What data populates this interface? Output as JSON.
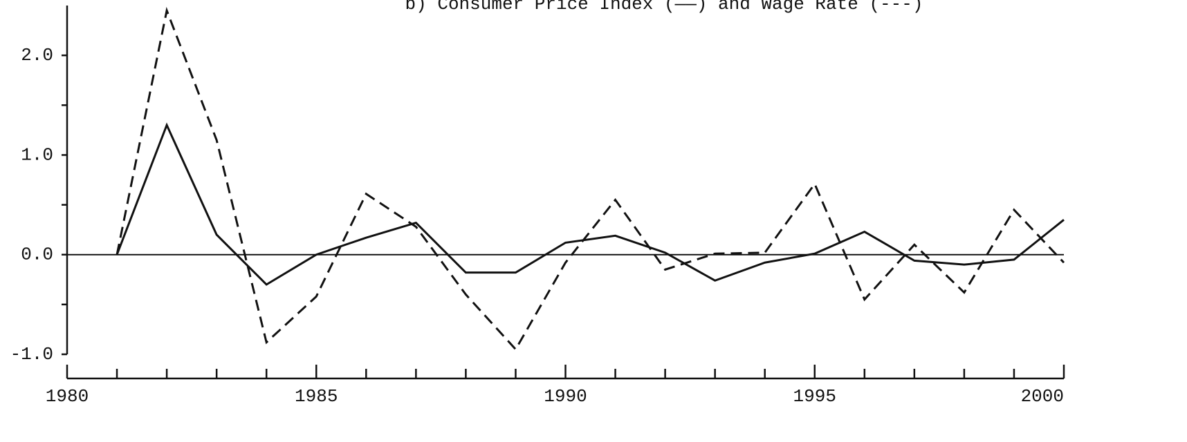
{
  "chart_data": {
    "type": "line",
    "title": "b) Consumer Price Index (——) and Wage Rate (---)",
    "x": [
      1981,
      1982,
      1983,
      1984,
      1985,
      1986,
      1987,
      1988,
      1989,
      1990,
      1991,
      1992,
      1993,
      1994,
      1995,
      1996,
      1997,
      1998,
      1999,
      2000
    ],
    "series": [
      {
        "name": "Consumer Price Index",
        "color": "#111111",
        "dash": "solid",
        "values": [
          0.0,
          1.3,
          0.2,
          -0.3,
          0.0,
          0.17,
          0.32,
          -0.18,
          -0.18,
          0.12,
          0.19,
          0.02,
          -0.26,
          -0.08,
          0.01,
          0.23,
          -0.06,
          -0.1,
          -0.05,
          0.35
        ]
      },
      {
        "name": "Wage Rate",
        "color": "#111111",
        "dash": "dashed",
        "values": [
          0.0,
          2.45,
          1.15,
          -0.88,
          -0.42,
          0.61,
          0.28,
          -0.4,
          -0.95,
          -0.08,
          0.55,
          -0.15,
          0.01,
          0.02,
          0.71,
          -0.45,
          0.1,
          -0.38,
          0.45,
          -0.08
        ]
      }
    ],
    "xlim": [
      1980,
      2000
    ],
    "xticks": [
      1980,
      1985,
      1990,
      1995,
      2000
    ],
    "xminor_ticks": [
      1981,
      1982,
      1983,
      1984,
      1986,
      1987,
      1988,
      1989,
      1991,
      1992,
      1993,
      1994,
      1996,
      1997,
      1998,
      1999
    ],
    "ylim": [
      -1.0,
      2.5
    ],
    "yticks": [
      {
        "value": -1.0,
        "label": "-1.0"
      },
      {
        "value": 0.0,
        "label": "0.0"
      },
      {
        "value": 1.0,
        "label": "1.0"
      },
      {
        "value": 2.0,
        "label": "2.0"
      }
    ],
    "yminor_ticks": [
      -0.5,
      0.5,
      1.5
    ],
    "zero_line": true,
    "grid": false
  }
}
